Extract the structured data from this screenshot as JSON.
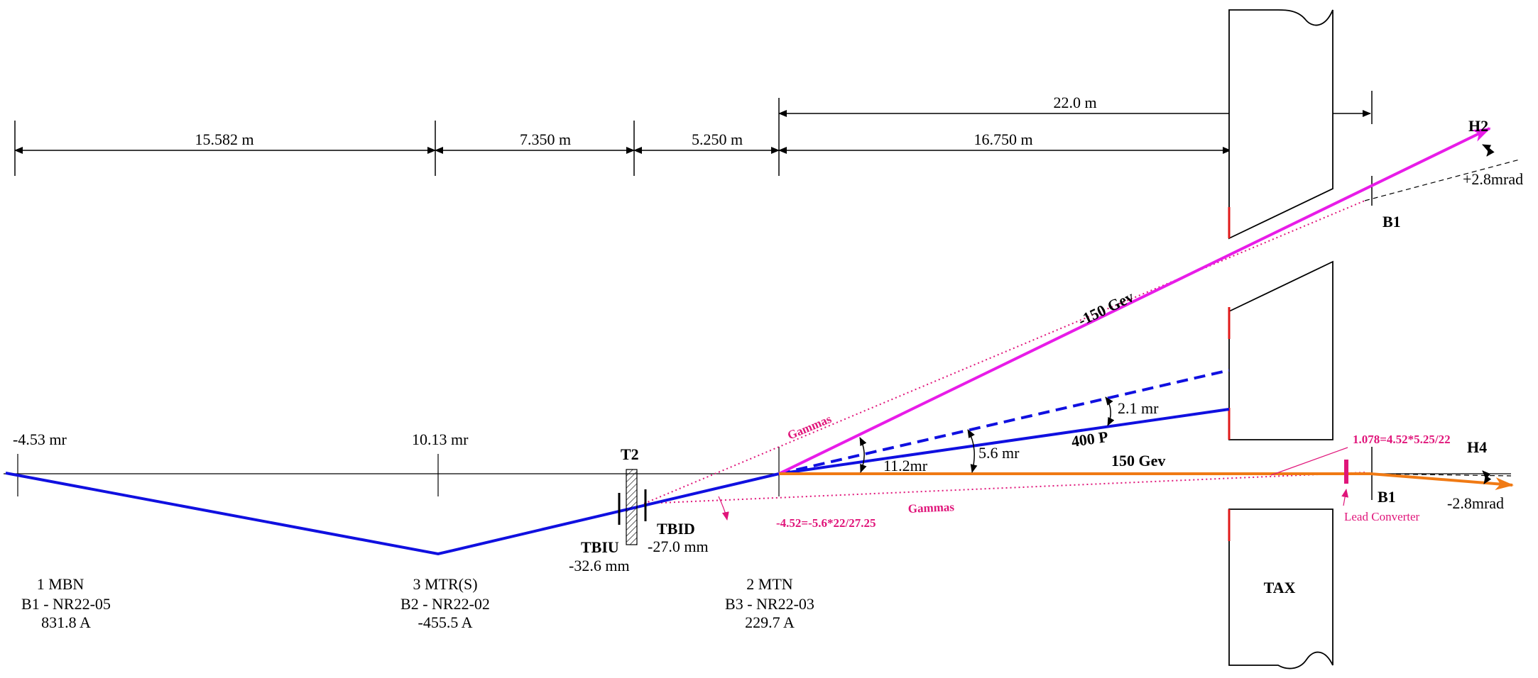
{
  "dimensions": {
    "d1": "15.582 m",
    "d2": "7.350 m",
    "d3": "5.250 m",
    "d4": "16.750 m",
    "d5": "22.0 m"
  },
  "angles": {
    "a1": "-4.53 mr",
    "a2": "10.13 mr",
    "a3": "11.2mr",
    "a4": "5.6 mr",
    "a5": "2.1 mr",
    "h2_angle": "+2.8mrad",
    "h4_angle": "-2.8mrad"
  },
  "elements": {
    "t2": "T2",
    "tbiu": "TBIU",
    "tbiu_val": "-32.6 mm",
    "tbid": "TBID",
    "tbid_val": "-27.0 mm",
    "tax": "TAX",
    "b1_upper": "B1",
    "b1_lower": "B1",
    "h2": "H2",
    "h4": "H4"
  },
  "magnets": [
    {
      "name": "1 MBN",
      "id": "B1 - NR22-05",
      "current": "831.8 A"
    },
    {
      "name": "3 MTR(S)",
      "id": "B2 - NR22-02",
      "current": "-455.5 A"
    },
    {
      "name": "2 MTN",
      "id": "B3 - NR22-03",
      "current": "229.7 A"
    }
  ],
  "beams": {
    "minus150": "-150 Gev",
    "p400": "400 P",
    "plus150": "150 Gev",
    "gammas_upper": "Gammas",
    "gammas_lower": "Gammas",
    "formula_lower": "-4.52=-5.6*22/27.25",
    "formula_upper": "1.078=4.52*5.25/22",
    "lead_converter": "Lead Converter"
  },
  "colors": {
    "blue": "#1010e0",
    "magenta": "#e81ce8",
    "orange": "#f07a14",
    "pink": "#e0157a",
    "red": "#e01818"
  }
}
